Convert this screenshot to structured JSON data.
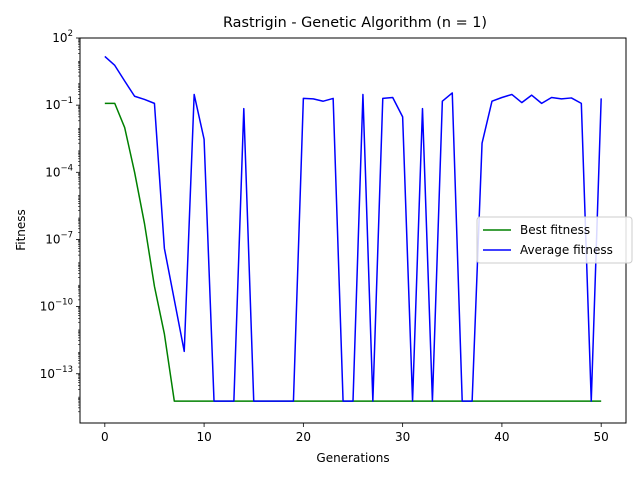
{
  "chart_data": {
    "type": "line",
    "title": "Rastrigin - Genetic Algorithm (n = 1)",
    "xlabel": "Generations",
    "ylabel": "Fitness",
    "yscale": "log",
    "xlim": [
      -2.5,
      52.5
    ],
    "ylim_log10": [
      -15.2,
      2
    ],
    "x_ticks": [
      0,
      10,
      20,
      30,
      40,
      50
    ],
    "y_ticks": [
      {
        "exp": 2,
        "label": "10^2"
      },
      {
        "exp": -1,
        "label": "10^-1"
      },
      {
        "exp": -4,
        "label": "10^-4"
      },
      {
        "exp": -7,
        "label": "10^-7"
      },
      {
        "exp": -10,
        "label": "10^-10"
      },
      {
        "exp": -13,
        "label": "10^-13"
      }
    ],
    "legend_position": "center-right",
    "grid": false,
    "x": [
      0,
      1,
      2,
      3,
      4,
      5,
      6,
      7,
      8,
      9,
      10,
      11,
      12,
      13,
      14,
      15,
      16,
      17,
      18,
      19,
      20,
      21,
      22,
      23,
      24,
      25,
      26,
      27,
      28,
      29,
      30,
      31,
      32,
      33,
      34,
      35,
      36,
      37,
      38,
      39,
      40,
      41,
      42,
      43,
      44,
      45,
      46,
      47,
      48,
      49,
      50
    ],
    "series": [
      {
        "name": "Best fitness",
        "color": "#008000",
        "values": [
          0.12,
          0.12,
          0.01,
          0.0001,
          5e-07,
          8e-10,
          6e-12,
          6e-15,
          6e-15,
          6e-15,
          6e-15,
          6e-15,
          6e-15,
          6e-15,
          6e-15,
          6e-15,
          6e-15,
          6e-15,
          6e-15,
          6e-15,
          6e-15,
          6e-15,
          6e-15,
          6e-15,
          6e-15,
          6e-15,
          6e-15,
          6e-15,
          6e-15,
          6e-15,
          6e-15,
          6e-15,
          6e-15,
          6e-15,
          6e-15,
          6e-15,
          6e-15,
          6e-15,
          6e-15,
          6e-15,
          6e-15,
          6e-15,
          6e-15,
          6e-15,
          6e-15,
          6e-15,
          6e-15,
          6e-15,
          6e-15,
          6e-15,
          6e-15
        ]
      },
      {
        "name": "Average fitness",
        "color": "#0000ff",
        "values": [
          15,
          6,
          1.2,
          0.25,
          0.18,
          0.12,
          4e-08,
          2e-10,
          1e-12,
          0.3,
          0.003,
          6e-15,
          6e-15,
          6e-15,
          0.07,
          6e-15,
          6e-15,
          6e-15,
          6e-15,
          6e-15,
          0.2,
          0.19,
          0.15,
          0.2,
          6e-15,
          6e-15,
          0.3,
          6e-15,
          0.2,
          0.22,
          0.03,
          6e-15,
          0.07,
          6e-15,
          0.15,
          0.35,
          6e-15,
          6e-15,
          0.002,
          0.15,
          0.22,
          0.3,
          0.13,
          0.28,
          0.12,
          0.22,
          0.19,
          0.21,
          0.12,
          6e-15,
          0.2
        ]
      }
    ]
  }
}
